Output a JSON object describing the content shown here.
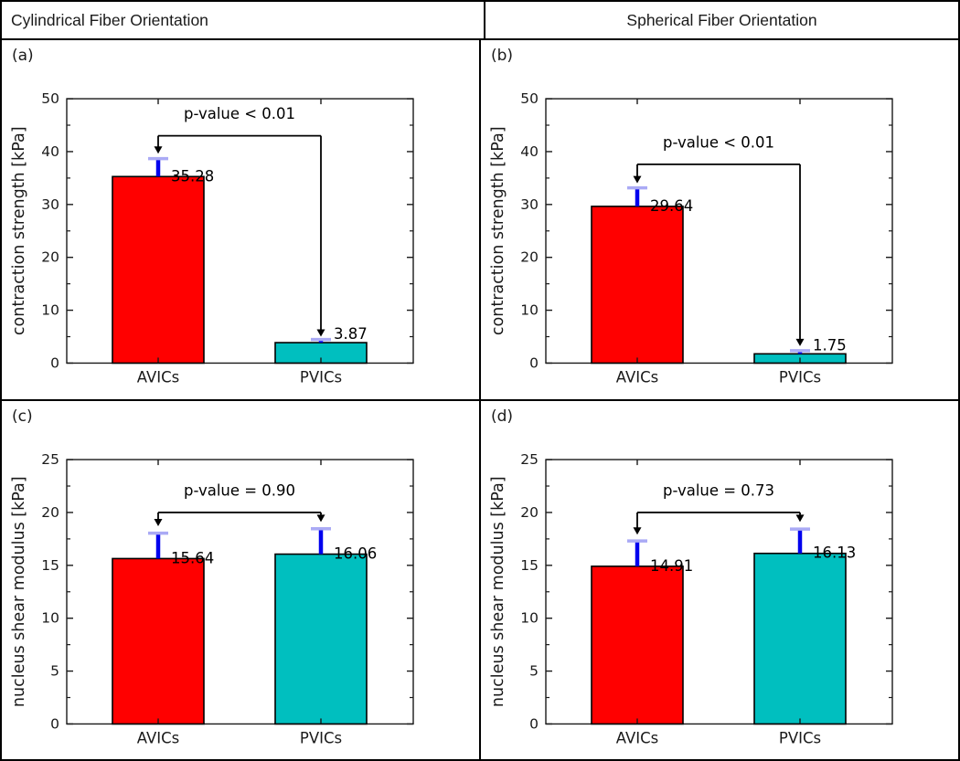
{
  "header": {
    "left_title": "Cylindrical Fiber Orientation",
    "right_title": "Spherical Fiber Orientation"
  },
  "colors": {
    "avic_bar": "#ff0000",
    "pvic_bar": "#00bfbf",
    "bar_edge": "#000000",
    "error_line": "#0000ee",
    "error_cap": "#aaaaf5",
    "axis": "#1a1a1a",
    "annotation": "#000000"
  },
  "chart_data": [
    {
      "panel_label": "(a)",
      "type": "bar",
      "ylabel": "contraction strength [kPa]",
      "ylim": [
        0,
        50
      ],
      "ytick_step": 10,
      "yminor_step": 5,
      "categories": [
        "AVICs",
        "PVICs"
      ],
      "values": [
        35.28,
        3.87
      ],
      "value_labels": [
        "35.28",
        "3.87"
      ],
      "errors_plus": [
        3.4,
        0.6
      ],
      "bar_colors": [
        "#ff0000",
        "#00bfbf"
      ],
      "annotation": {
        "text": "p-value < 0.01",
        "bracket_y": 43.0,
        "text_y": 46.2,
        "arrow_tip_y": [
          39.6,
          5.0
        ]
      }
    },
    {
      "panel_label": "(b)",
      "type": "bar",
      "ylabel": "contraction strength [kPa]",
      "ylim": [
        0,
        50
      ],
      "ytick_step": 10,
      "yminor_step": 5,
      "categories": [
        "AVICs",
        "PVICs"
      ],
      "values": [
        29.64,
        1.75
      ],
      "value_labels": [
        "29.64",
        "1.75"
      ],
      "errors_plus": [
        3.5,
        0.6
      ],
      "bar_colors": [
        "#ff0000",
        "#00bfbf"
      ],
      "annotation": {
        "text": "p-value < 0.01",
        "bracket_y": 37.6,
        "text_y": 40.8,
        "arrow_tip_y": [
          34.0,
          3.2
        ]
      }
    },
    {
      "panel_label": "(c)",
      "type": "bar",
      "ylabel": "nucleus shear modulus [kPa]",
      "ylim": [
        0,
        25
      ],
      "ytick_step": 5,
      "yminor_step": 2.5,
      "categories": [
        "AVICs",
        "PVICs"
      ],
      "values": [
        15.64,
        16.06
      ],
      "value_labels": [
        "15.64",
        "16.06"
      ],
      "errors_plus": [
        2.4,
        2.4
      ],
      "bar_colors": [
        "#ff0000",
        "#00bfbf"
      ],
      "annotation": {
        "text": "p-value = 0.90",
        "bracket_y": 20.0,
        "text_y": 21.6,
        "arrow_tip_y": [
          18.7,
          19.1
        ]
      }
    },
    {
      "panel_label": "(d)",
      "type": "bar",
      "ylabel": "nucleus shear modulus [kPa]",
      "ylim": [
        0,
        25
      ],
      "ytick_step": 5,
      "yminor_step": 2.5,
      "categories": [
        "AVICs",
        "PVICs"
      ],
      "values": [
        14.91,
        16.13
      ],
      "value_labels": [
        "14.91",
        "16.13"
      ],
      "errors_plus": [
        2.4,
        2.3
      ],
      "bar_colors": [
        "#ff0000",
        "#00bfbf"
      ],
      "annotation": {
        "text": "p-value = 0.73",
        "bracket_y": 20.0,
        "text_y": 21.6,
        "arrow_tip_y": [
          17.9,
          19.1
        ]
      }
    }
  ]
}
